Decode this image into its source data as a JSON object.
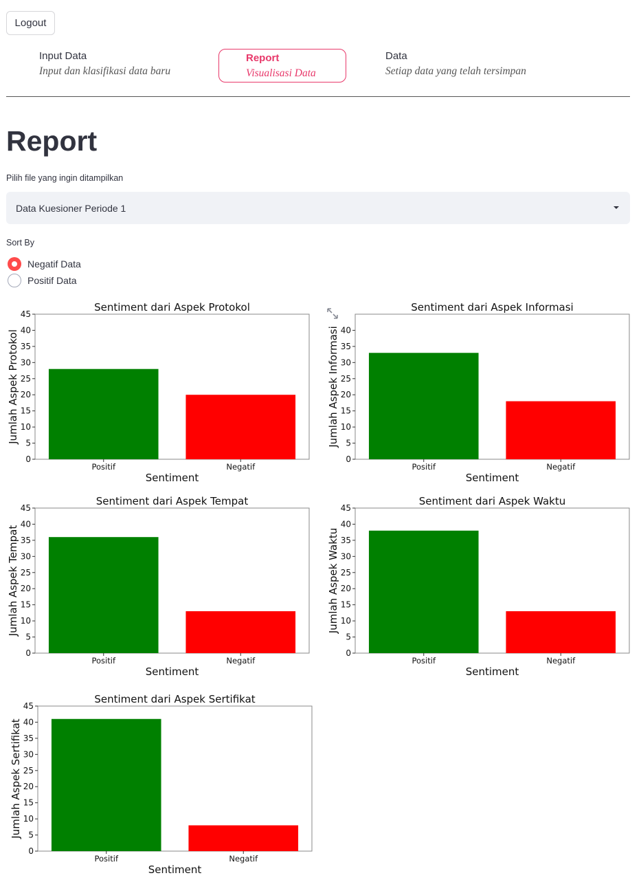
{
  "header": {
    "logout_label": "Logout"
  },
  "nav": [
    {
      "label": "Input Data",
      "sub": "Input dan klasifikasi data baru",
      "active": false
    },
    {
      "label": "Report",
      "sub": "Visualisasi Data",
      "active": true
    },
    {
      "label": "Data",
      "sub": "Setiap data yang telah tersimpan",
      "active": false
    }
  ],
  "page": {
    "title": "Report"
  },
  "file_select": {
    "label": "Pilih file yang ingin ditampilkan",
    "value": "Data Kuesioner Periode 1"
  },
  "sort": {
    "label": "Sort By",
    "options": [
      {
        "label": "Negatif Data",
        "checked": true
      },
      {
        "label": "Positif Data",
        "checked": false
      }
    ]
  },
  "colors": {
    "accent": "#ff4b4b",
    "nav_active": "#e8386a",
    "positif": "#008000",
    "negatif": "#ff0000"
  },
  "chart_data": [
    {
      "type": "bar",
      "title": "Sentiment dari Aspek Protokol",
      "xlabel": "Sentiment",
      "ylabel": "Jumlah Aspek Protokol",
      "categories": [
        "Positif",
        "Negatif"
      ],
      "values": [
        28,
        20
      ],
      "ylim": [
        0,
        45
      ],
      "yticks": [
        0,
        5,
        10,
        15,
        20,
        25,
        30,
        35,
        40,
        45
      ],
      "colors": [
        "#008000",
        "#ff0000"
      ]
    },
    {
      "type": "bar",
      "title": "Sentiment dari Aspek Informasi",
      "xlabel": "Sentiment",
      "ylabel": "Jumlah Aspek Informasi",
      "categories": [
        "Positif",
        "Negatif"
      ],
      "values": [
        33,
        18
      ],
      "ylim": [
        0,
        45
      ],
      "yticks": [
        0,
        5,
        10,
        15,
        20,
        25,
        30,
        35,
        40
      ],
      "colors": [
        "#008000",
        "#ff0000"
      ]
    },
    {
      "type": "bar",
      "title": "Sentiment dari Aspek Tempat",
      "xlabel": "Sentiment",
      "ylabel": "Jumlah Aspek Tempat",
      "categories": [
        "Positif",
        "Negatif"
      ],
      "values": [
        36,
        13
      ],
      "ylim": [
        0,
        45
      ],
      "yticks": [
        0,
        5,
        10,
        15,
        20,
        25,
        30,
        35,
        40,
        45
      ],
      "colors": [
        "#008000",
        "#ff0000"
      ]
    },
    {
      "type": "bar",
      "title": "Sentiment dari Aspek Waktu",
      "xlabel": "Sentiment",
      "ylabel": "Jumlah Aspek Waktu",
      "categories": [
        "Positif",
        "Negatif"
      ],
      "values": [
        38,
        13
      ],
      "ylim": [
        0,
        45
      ],
      "yticks": [
        0,
        5,
        10,
        15,
        20,
        25,
        30,
        35,
        40,
        45
      ],
      "colors": [
        "#008000",
        "#ff0000"
      ]
    },
    {
      "type": "bar",
      "title": "Sentiment dari Aspek Sertifikat",
      "xlabel": "Sentiment",
      "ylabel": "Jumlah Aspek Sertifikat",
      "categories": [
        "Positif",
        "Negatif"
      ],
      "values": [
        41,
        8
      ],
      "ylim": [
        0,
        45
      ],
      "yticks": [
        0,
        5,
        10,
        15,
        20,
        25,
        30,
        35,
        40,
        45
      ],
      "colors": [
        "#008000",
        "#ff0000"
      ]
    }
  ]
}
